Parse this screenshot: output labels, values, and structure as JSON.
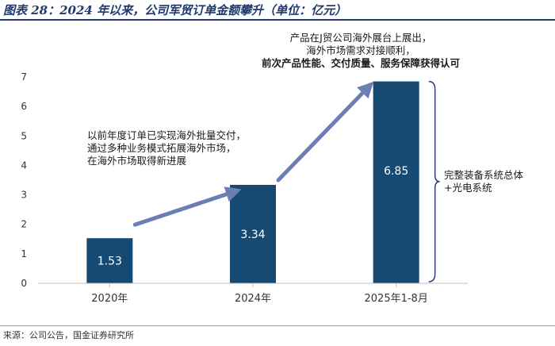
{
  "header": {
    "title": "图表 28：2024 年以来，公司军贸订单金额攀升（单位：亿元）"
  },
  "footer": {
    "source": "来源：公司公告，国金证券研究所"
  },
  "annotations": {
    "mid": [
      "以前年度订单已实现海外批量交付，",
      "通过多种业务模式拓展海外市场，",
      "在海外市场取得新进展"
    ],
    "top": [
      "产品在J贸公司海外展台上展出，",
      "海外市场需求对接顺利，",
      "前次产品性能、交付质量、服务保障获得认可"
    ],
    "bracket": [
      "完整装备系统总体",
      "+光电系统"
    ]
  },
  "chart_data": {
    "type": "bar",
    "title": "",
    "xlabel": "",
    "ylabel": "",
    "categories": [
      "2020年",
      "2024年",
      "2025年1-8月"
    ],
    "values": [
      1.53,
      3.34,
      6.85
    ],
    "value_labels": [
      "1.53",
      "3.34",
      "6.85"
    ],
    "ylim": [
      0,
      7
    ],
    "yticks": [
      0,
      1,
      2,
      3,
      4,
      5,
      6,
      7
    ],
    "grid": false,
    "colors": {
      "bar": "#164a72",
      "arrow": "#6b7fb5",
      "axis": "#bfbfbf",
      "bracket": "#2f3d7a"
    }
  }
}
